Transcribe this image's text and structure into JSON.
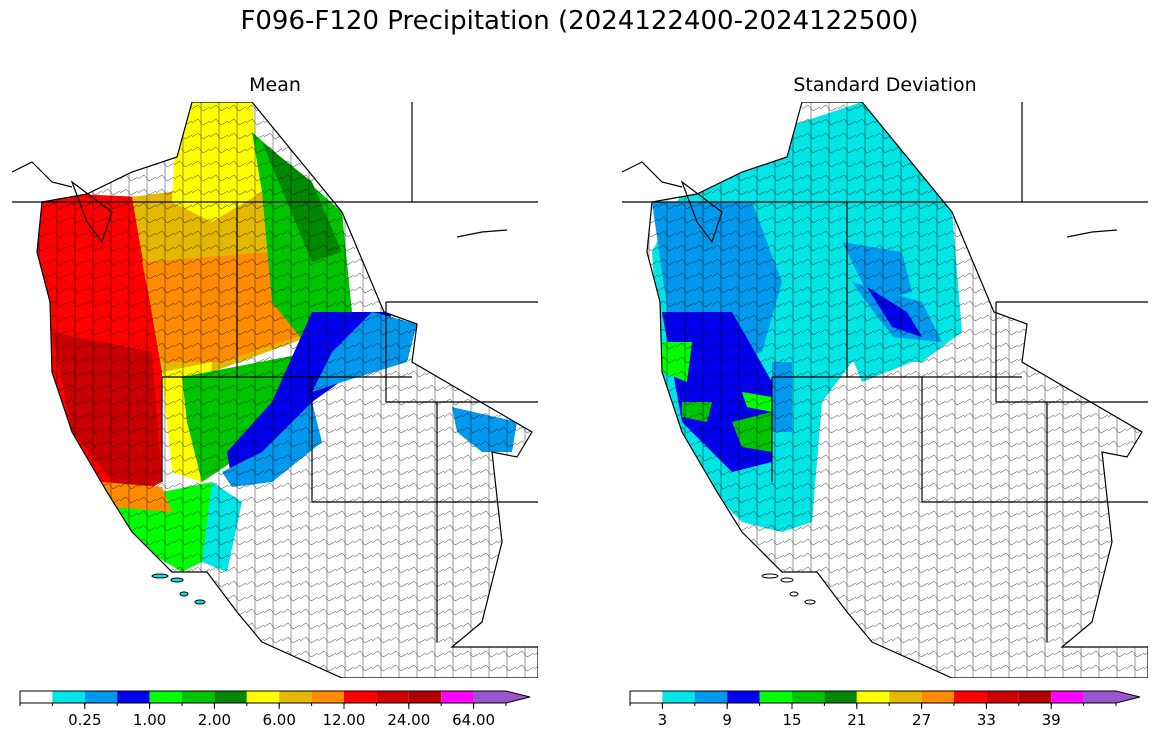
{
  "figure": {
    "title": "F096-F120 Precipitation (2024122400-2024122500)"
  },
  "panels": [
    {
      "id": "mean",
      "title": "Mean",
      "colorbar": {
        "colors": [
          "#ffffff",
          "#00e5e5",
          "#0099ee",
          "#0000ee",
          "#00ff00",
          "#00c400",
          "#008800",
          "#ffff00",
          "#e5b800",
          "#ff8c00",
          "#ff0000",
          "#d00000",
          "#b20000",
          "#ff00ff",
          "#9955cc"
        ],
        "tick_labels": [
          "0.25",
          "1.00",
          "2.00",
          "6.00",
          "12.00",
          "24.00",
          "64.00"
        ],
        "tick_boundary_index": [
          2,
          4,
          6,
          8,
          10,
          12,
          14
        ],
        "extend": "max"
      }
    },
    {
      "id": "stddev",
      "title": "Standard Deviation",
      "colorbar": {
        "colors": [
          "#ffffff",
          "#00e5e5",
          "#0099ee",
          "#0000ee",
          "#00ff00",
          "#00c400",
          "#008800",
          "#ffff00",
          "#e5b800",
          "#ff8c00",
          "#ff0000",
          "#d00000",
          "#b20000",
          "#ff00ff",
          "#9955cc"
        ],
        "tick_labels": [
          "3",
          "9",
          "15",
          "21",
          "27",
          "33",
          "39"
        ],
        "tick_boundary_index": [
          1,
          3,
          5,
          7,
          9,
          11,
          13
        ],
        "extend": "max"
      }
    }
  ]
}
